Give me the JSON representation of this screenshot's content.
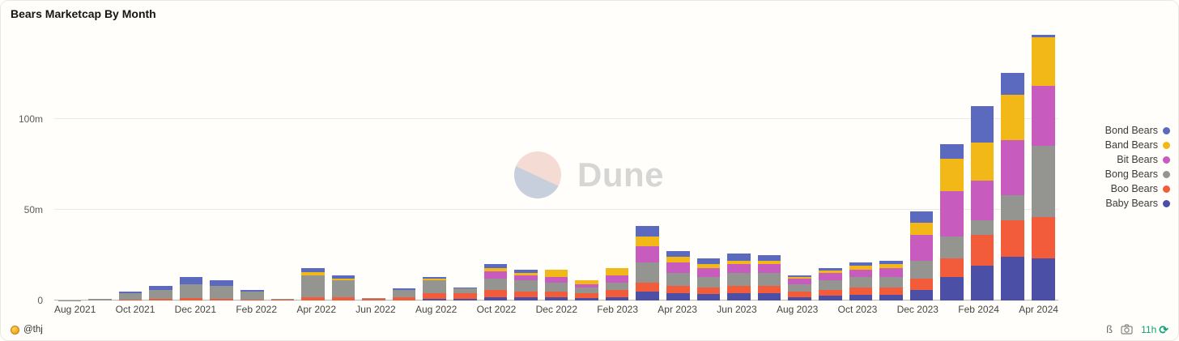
{
  "header": {
    "title": "Bears Marketcap By Month"
  },
  "watermark": {
    "text": "Dune"
  },
  "footer": {
    "author": "@thj",
    "glyph": "ß",
    "refresh_age": "11h",
    "icons": [
      "medal-icon",
      "camera-icon",
      "refresh-check-icon"
    ]
  },
  "chart_data": {
    "type": "bar",
    "stacked": true,
    "title": "Bears Marketcap By Month",
    "xlabel": "",
    "ylabel": "",
    "ylim": [
      0,
      147
    ],
    "grid": "horizontal",
    "legend_position": "right",
    "yticks": [
      {
        "value": 0,
        "label": "0"
      },
      {
        "value": 50,
        "label": "50m"
      },
      {
        "value": 100,
        "label": "100m"
      }
    ],
    "x_tick_every": 2,
    "categories": [
      "Aug 2021",
      "Sep 2021",
      "Oct 2021",
      "Nov 2021",
      "Dec 2021",
      "Jan 2022",
      "Feb 2022",
      "Mar 2022",
      "Apr 2022",
      "May 2022",
      "Jun 2022",
      "Jul 2022",
      "Aug 2022",
      "Sep 2022",
      "Oct 2022",
      "Nov 2022",
      "Dec 2022",
      "Jan 2023",
      "Feb 2023",
      "Mar 2023",
      "Apr 2023",
      "May 2023",
      "Jun 2023",
      "Jul 2023",
      "Aug 2023",
      "Sep 2023",
      "Oct 2023",
      "Nov 2023",
      "Dec 2023",
      "Jan 2024",
      "Feb 2024",
      "Mar 2024",
      "Apr 2024"
    ],
    "series": [
      {
        "name": "Baby Bears",
        "color": "#4b4fa6",
        "values": [
          0,
          0,
          0,
          0,
          0,
          0,
          0,
          0,
          0,
          0,
          0,
          0,
          1,
          1,
          2,
          2,
          2,
          1.5,
          2,
          5,
          4,
          3.5,
          4,
          4,
          2,
          2.5,
          3,
          3,
          6,
          13,
          19,
          24,
          23
        ]
      },
      {
        "name": "Boo Bears",
        "color": "#f25c3b",
        "values": [
          0,
          0,
          0.5,
          1,
          1.5,
          1,
          0.5,
          0.5,
          2,
          2,
          1,
          2,
          3,
          3,
          4,
          3,
          3,
          2.5,
          4,
          5,
          4,
          3.5,
          4,
          4,
          3,
          3.5,
          4,
          4,
          6,
          10,
          17,
          20,
          23
        ]
      },
      {
        "name": "Bong Bears",
        "color": "#949490",
        "values": [
          0.2,
          0.8,
          3.5,
          5,
          7.5,
          7,
          4.5,
          0.5,
          12,
          9,
          0.5,
          4,
          7,
          2.5,
          6,
          6,
          5,
          3,
          4,
          11,
          7,
          6,
          7,
          7,
          4,
          5,
          6,
          6,
          10,
          12,
          8,
          14,
          39
        ]
      },
      {
        "name": "Bit Bears",
        "color": "#c85cbe",
        "values": [
          0,
          0,
          0,
          0,
          0,
          0,
          0,
          0,
          0,
          0,
          0,
          0,
          0,
          0,
          4,
          3,
          3,
          2,
          4,
          9,
          6,
          5,
          5,
          5,
          3,
          4,
          4,
          5,
          14,
          25,
          22,
          30,
          33
        ]
      },
      {
        "name": "Band Bears",
        "color": "#f2b818",
        "values": [
          0,
          0,
          0,
          0,
          0,
          0,
          0,
          0,
          1.5,
          1,
          0,
          0,
          1,
          0,
          2,
          1,
          4,
          2,
          4,
          5,
          3,
          2,
          2,
          2,
          1,
          1.5,
          2,
          2,
          7,
          18,
          21,
          25,
          27
        ]
      },
      {
        "name": "Bond Bears",
        "color": "#5b6abf",
        "values": [
          0,
          0,
          1,
          2,
          4,
          3,
          1,
          0,
          2.5,
          2,
          0,
          0.5,
          1,
          0.5,
          2,
          2,
          0,
          0,
          0,
          6,
          3,
          3,
          4,
          3,
          1,
          1.5,
          2,
          2,
          6,
          8,
          20,
          12,
          1
        ]
      }
    ],
    "legend": [
      {
        "label": "Bond Bears",
        "color": "#5b6abf"
      },
      {
        "label": "Band Bears",
        "color": "#f2b818"
      },
      {
        "label": "Bit Bears",
        "color": "#c85cbe"
      },
      {
        "label": "Bong Bears",
        "color": "#949490"
      },
      {
        "label": "Boo Bears",
        "color": "#f25c3b"
      },
      {
        "label": "Baby Bears",
        "color": "#4b4fa6"
      }
    ]
  }
}
